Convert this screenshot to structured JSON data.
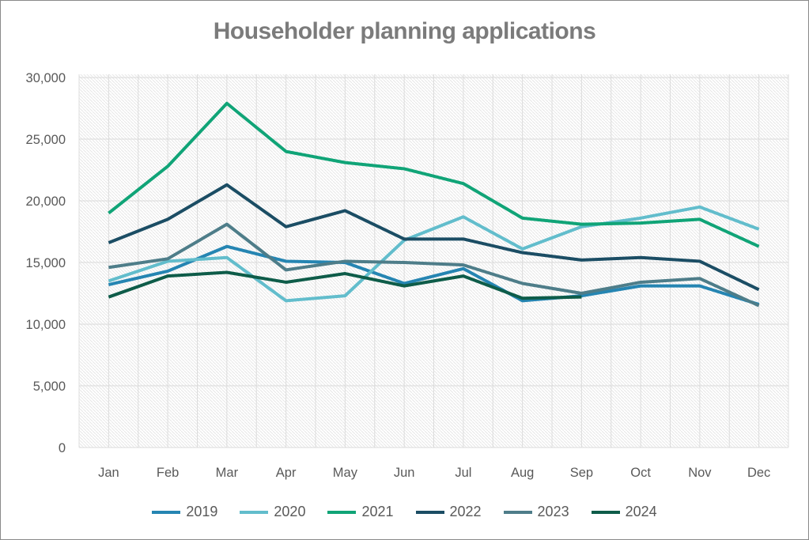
{
  "chart_data": {
    "type": "line",
    "title": "Householder planning applications",
    "categories": [
      "Jan",
      "Feb",
      "Mar",
      "Apr",
      "May",
      "Jun",
      "Jul",
      "Aug",
      "Sep",
      "Oct",
      "Nov",
      "Dec"
    ],
    "y_ticks": [
      "0",
      "5,000",
      "10,000",
      "15,000",
      "20,000",
      "25,000",
      "30,000"
    ],
    "ylim": [
      0,
      30000
    ],
    "y_major_step": 5000,
    "grid": true,
    "plot_background": "diagonal-hatch",
    "legend_position": "bottom",
    "series": [
      {
        "name": "2019",
        "color": "#2585b2",
        "values": [
          13200,
          14300,
          16300,
          15100,
          15000,
          13300,
          14500,
          11900,
          12300,
          13100,
          13100,
          11600
        ]
      },
      {
        "name": "2020",
        "color": "#62bdcc",
        "values": [
          13500,
          15100,
          15400,
          11900,
          12300,
          16800,
          18700,
          16100,
          17900,
          18600,
          19500,
          17700
        ]
      },
      {
        "name": "2021",
        "color": "#10a477",
        "values": [
          19000,
          22800,
          27900,
          24000,
          23100,
          22600,
          21400,
          18600,
          18100,
          18200,
          18500,
          16300
        ]
      },
      {
        "name": "2022",
        "color": "#1b4d64",
        "values": [
          16600,
          18500,
          21300,
          17900,
          19200,
          16900,
          16900,
          15800,
          15200,
          15400,
          15100,
          12800
        ]
      },
      {
        "name": "2023",
        "color": "#4e7d89",
        "values": [
          14600,
          15300,
          18100,
          14400,
          15100,
          15000,
          14800,
          13300,
          12500,
          13400,
          13700,
          11500
        ]
      },
      {
        "name": "2024",
        "color": "#0e5c49",
        "values": [
          12200,
          13900,
          14200,
          13400,
          14100,
          13100,
          13900,
          12100,
          12200,
          null,
          null,
          null
        ]
      }
    ]
  }
}
